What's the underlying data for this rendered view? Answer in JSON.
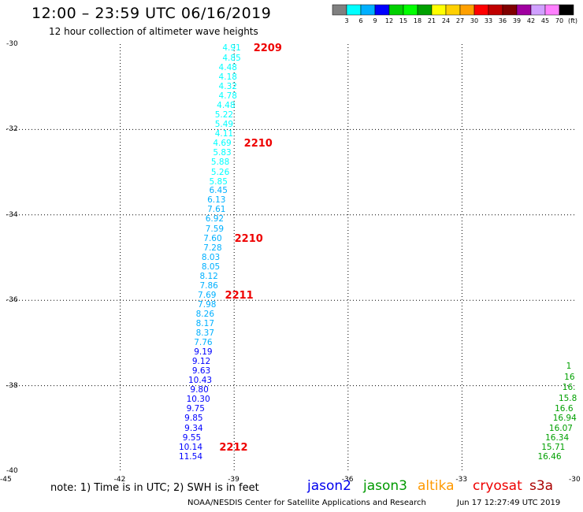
{
  "header": {
    "title": "12:00 – 23:59 UTC 06/16/2019",
    "subtitle": "12 hour collection of altimeter wave heights"
  },
  "legend": {
    "colors": [
      "#808080",
      "#00ffff",
      "#00b0ff",
      "#0000ff",
      "#00d000",
      "#00ff00",
      "#00a000",
      "#ffff00",
      "#ffd000",
      "#ffa000",
      "#ff0000",
      "#c00000",
      "#800000",
      "#a000a0",
      "#d0a0ff",
      "#ff80ff",
      "#000000"
    ],
    "labels": [
      "3",
      "6",
      "9",
      "12",
      "15",
      "18",
      "21",
      "24",
      "27",
      "30",
      "33",
      "36",
      "39",
      "42",
      "45",
      "70",
      "(ft)"
    ]
  },
  "chart_data": {
    "type": "scatter",
    "xlim": [
      -45,
      -30
    ],
    "ylim": [
      -40,
      -30
    ],
    "x_ticks": [
      "-45",
      "-42",
      "-39",
      "-36",
      "-33",
      "-30"
    ],
    "y_ticks": [
      "-30",
      "-32",
      "-34",
      "-36",
      "-38",
      "-40"
    ],
    "series": [
      {
        "name": "jason2",
        "points": [
          {
            "v": "4.91",
            "x": -39.1,
            "y": -30.1,
            "c": "#00ffff"
          },
          {
            "v": "4.85",
            "x": -39.1,
            "y": -30.33,
            "c": "#00ffff"
          },
          {
            "v": "4.48",
            "x": -39.2,
            "y": -30.55,
            "c": "#00ffff"
          },
          {
            "v": "4.18",
            "x": -39.2,
            "y": -30.77,
            "c": "#00ffff"
          },
          {
            "v": "4.32",
            "x": -39.2,
            "y": -31.0,
            "c": "#00ffff"
          },
          {
            "v": "4.78",
            "x": -39.2,
            "y": -31.22,
            "c": "#00ffff"
          },
          {
            "v": "4.48",
            "x": -39.25,
            "y": -31.44,
            "c": "#00ffff"
          },
          {
            "v": "5.22",
            "x": -39.3,
            "y": -31.66,
            "c": "#00ffff"
          },
          {
            "v": "5.49",
            "x": -39.3,
            "y": -31.88,
            "c": "#00ffff"
          },
          {
            "v": "4.11",
            "x": -39.3,
            "y": -32.1,
            "c": "#00ffff"
          },
          {
            "v": "4.69",
            "x": -39.35,
            "y": -32.33,
            "c": "#00ffff"
          },
          {
            "v": "5.83",
            "x": -39.35,
            "y": -32.55,
            "c": "#00ffff"
          },
          {
            "v": "5.88",
            "x": -39.4,
            "y": -32.77,
            "c": "#00ffff"
          },
          {
            "v": "5.26",
            "x": -39.4,
            "y": -33.0,
            "c": "#00ffff"
          },
          {
            "v": "5.85",
            "x": -39.45,
            "y": -33.22,
            "c": "#00ffff"
          },
          {
            "v": "6.45",
            "x": -39.45,
            "y": -33.44,
            "c": "#00b0ff"
          },
          {
            "v": "6.13",
            "x": -39.5,
            "y": -33.66,
            "c": "#00b0ff"
          },
          {
            "v": "7.61",
            "x": -39.5,
            "y": -33.88,
            "c": "#00b0ff"
          },
          {
            "v": "6.92",
            "x": -39.55,
            "y": -34.1,
            "c": "#00b0ff"
          },
          {
            "v": "7.59",
            "x": -39.55,
            "y": -34.33,
            "c": "#00b0ff"
          },
          {
            "v": "7.60",
            "x": -39.6,
            "y": -34.55,
            "c": "#00b0ff"
          },
          {
            "v": "7.28",
            "x": -39.6,
            "y": -34.77,
            "c": "#00b0ff"
          },
          {
            "v": "8.03",
            "x": -39.65,
            "y": -35.0,
            "c": "#00b0ff"
          },
          {
            "v": "8.05",
            "x": -39.65,
            "y": -35.22,
            "c": "#00b0ff"
          },
          {
            "v": "8.12",
            "x": -39.7,
            "y": -35.44,
            "c": "#00b0ff"
          },
          {
            "v": "7.86",
            "x": -39.7,
            "y": -35.66,
            "c": "#00b0ff"
          },
          {
            "v": "7.69",
            "x": -39.75,
            "y": -35.88,
            "c": "#00b0ff"
          },
          {
            "v": "7.98",
            "x": -39.75,
            "y": -36.1,
            "c": "#00b0ff"
          },
          {
            "v": "8.26",
            "x": -39.8,
            "y": -36.33,
            "c": "#00b0ff"
          },
          {
            "v": "8.17",
            "x": -39.8,
            "y": -36.55,
            "c": "#00b0ff"
          },
          {
            "v": "8.37",
            "x": -39.8,
            "y": -36.77,
            "c": "#00b0ff"
          },
          {
            "v": "7.76",
            "x": -39.85,
            "y": -37.0,
            "c": "#00b0ff"
          },
          {
            "v": "9.19",
            "x": -39.85,
            "y": -37.22,
            "c": "#0000ff"
          },
          {
            "v": "9.12",
            "x": -39.9,
            "y": -37.44,
            "c": "#0000ff"
          },
          {
            "v": "9.63",
            "x": -39.9,
            "y": -37.66,
            "c": "#0000ff"
          },
          {
            "v": "10.43",
            "x": -40.0,
            "y": -37.88,
            "c": "#0000ff"
          },
          {
            "v": "9.80",
            "x": -39.95,
            "y": -38.1,
            "c": "#0000ff"
          },
          {
            "v": "10.30",
            "x": -40.05,
            "y": -38.33,
            "c": "#0000ff"
          },
          {
            "v": "9.75",
            "x": -40.05,
            "y": -38.55,
            "c": "#0000ff"
          },
          {
            "v": "9.85",
            "x": -40.1,
            "y": -38.77,
            "c": "#0000ff"
          },
          {
            "v": "9.34",
            "x": -40.1,
            "y": -39.0,
            "c": "#0000ff"
          },
          {
            "v": "9.55",
            "x": -40.15,
            "y": -39.22,
            "c": "#0000ff"
          },
          {
            "v": "10.14",
            "x": -40.25,
            "y": -39.44,
            "c": "#0000ff"
          },
          {
            "v": "11.54",
            "x": -40.25,
            "y": -39.66,
            "c": "#0000ff"
          }
        ]
      },
      {
        "name": "jason3",
        "points": [
          {
            "v": "1",
            "x": -30.05,
            "y": -37.55,
            "c": "#00a000"
          },
          {
            "v": "16",
            "x": -30.1,
            "y": -37.8,
            "c": "#00a000"
          },
          {
            "v": "16.",
            "x": -30.15,
            "y": -38.05,
            "c": "#00a000"
          },
          {
            "v": "15.8",
            "x": -30.25,
            "y": -38.3,
            "c": "#00a000"
          },
          {
            "v": "16.6",
            "x": -30.35,
            "y": -38.55,
            "c": "#00a000"
          },
          {
            "v": "16.94",
            "x": -30.4,
            "y": -38.77,
            "c": "#00a000"
          },
          {
            "v": "16.07",
            "x": -30.5,
            "y": -39.0,
            "c": "#00a000"
          },
          {
            "v": "16.34",
            "x": -30.6,
            "y": -39.22,
            "c": "#00a000"
          },
          {
            "v": "15.71",
            "x": -30.7,
            "y": -39.44,
            "c": "#00a000"
          },
          {
            "v": "16.46",
            "x": -30.8,
            "y": -39.66,
            "c": "#00a000"
          }
        ]
      }
    ],
    "pass_labels": [
      {
        "text": "2209",
        "x": -38.45,
        "y": -30.1
      },
      {
        "text": "2210",
        "x": -38.7,
        "y": -32.33
      },
      {
        "text": "2210",
        "x": -38.95,
        "y": -34.55
      },
      {
        "text": "2211",
        "x": -39.2,
        "y": -35.88
      },
      {
        "text": "2212",
        "x": -39.35,
        "y": -39.44
      }
    ]
  },
  "footer": {
    "note": "note: 1) Time is in UTC; 2) SWH is in feet",
    "satellites": [
      {
        "name": "jason2",
        "color": "#0000ee"
      },
      {
        "name": "jason3",
        "color": "#009900"
      },
      {
        "name": "altika",
        "color": "#ff9900"
      },
      {
        "name": "cryosat",
        "color": "#ee0000"
      },
      {
        "name": "s3a",
        "color": "#aa0000"
      }
    ],
    "credit": "NOAA/NESDIS Center for Satellite Applications and Research",
    "timestamp": "Jun 17 12:27:49 UTC 2019"
  }
}
